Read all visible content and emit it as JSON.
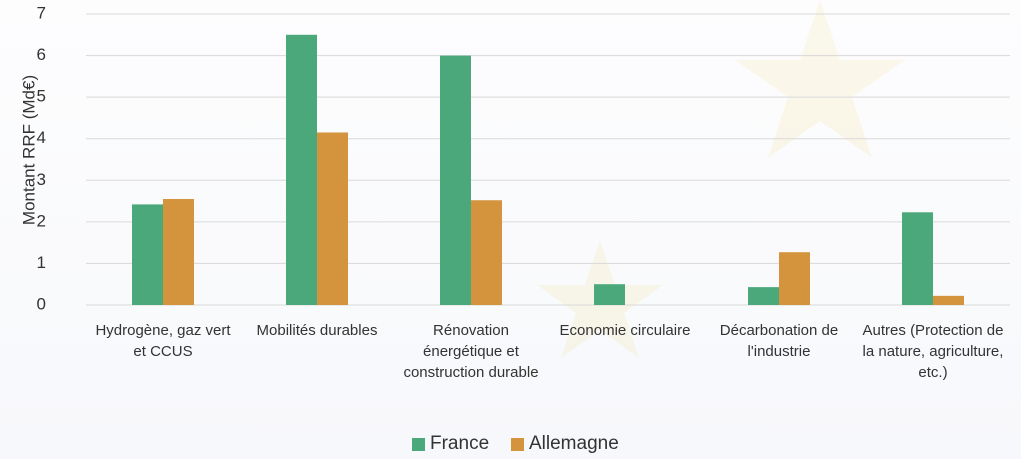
{
  "chart_data": {
    "type": "bar",
    "y_label": "Montant RRF (Md€)",
    "categories": [
      "Hydrogène, gaz vert et CCUS",
      "Mobilités durables",
      "Rénovation énergétique et construction durable",
      "Economie circulaire",
      "Décarbonation de l'industrie",
      "Autres (Protection de la nature, agriculture, etc.)"
    ],
    "series": [
      {
        "name": "France",
        "color": "#4aa87a",
        "values": [
          2.42,
          6.5,
          6.0,
          0.5,
          0.43,
          2.23
        ]
      },
      {
        "name": "Allemagne",
        "color": "#d4943e",
        "values": [
          2.55,
          4.15,
          2.52,
          0,
          1.27,
          0.22
        ]
      }
    ],
    "ylim": [
      0,
      7
    ],
    "yticks": [
      0,
      1,
      2,
      3,
      4,
      5,
      6,
      7
    ],
    "grid": true,
    "legend": "bottom"
  }
}
